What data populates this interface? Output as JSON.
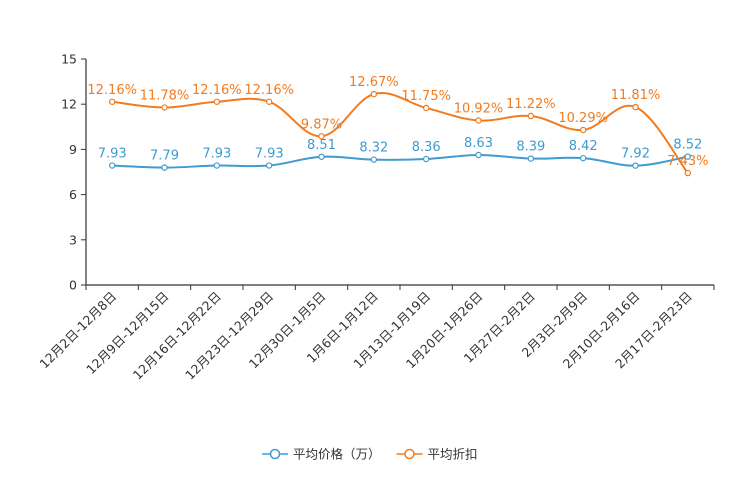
{
  "chart_data": {
    "type": "line",
    "categories": [
      "12月2日-12月8日",
      "12月9日-12月15日",
      "12月16日-12月22日",
      "12月23日-12月29日",
      "12月30日-1月5日",
      "1月6日-1月12日",
      "1月13日-1月19日",
      "1月20日-1月26日",
      "1月27日-2月2日",
      "2月3日-2月9日",
      "2月10日-2月16日",
      "2月17日-2月23日"
    ],
    "ylim": [
      0,
      15
    ],
    "yticks": [
      0,
      3,
      6,
      9,
      12,
      15
    ],
    "ytick_labels": [
      "0",
      "3",
      "6",
      "9",
      "12",
      "15"
    ],
    "series": [
      {
        "name": "平均价格（万）",
        "color": "#3f9bd0",
        "values": [
          7.93,
          7.79,
          7.93,
          7.93,
          8.51,
          8.32,
          8.36,
          8.63,
          8.39,
          8.42,
          7.92,
          8.52
        ],
        "labels": [
          "7.93",
          "7.79",
          "7.93",
          "7.93",
          "8.51",
          "8.32",
          "8.36",
          "8.63",
          "8.39",
          "8.42",
          "7.92",
          "8.52"
        ]
      },
      {
        "name": "平均折扣",
        "color": "#f27b1f",
        "values": [
          12.16,
          11.78,
          12.16,
          12.16,
          9.87,
          12.67,
          11.75,
          10.92,
          11.22,
          10.29,
          11.81,
          7.43
        ],
        "labels": [
          "12.16%",
          "11.78%",
          "12.16%",
          "12.16%",
          "9.87%",
          "12.67%",
          "11.75%",
          "10.92%",
          "11.22%",
          "10.29%",
          "11.81%",
          "7.43%"
        ]
      }
    ],
    "title": "",
    "xlabel": "",
    "ylabel": "",
    "legend_position": "bottom-center"
  }
}
